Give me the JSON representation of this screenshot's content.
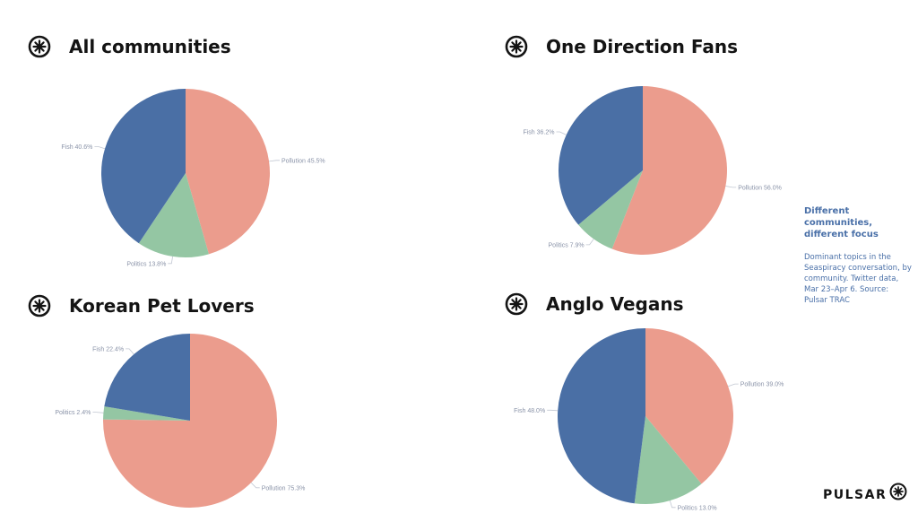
{
  "brand": {
    "name": "PULSAR",
    "logo_icon": "pulsar-star-icon"
  },
  "colors": {
    "pollution": "#eb9c8d",
    "fish": "#4a6fa5",
    "politics": "#94c6a3",
    "leader": "#c2c7d2",
    "text": "#8a93a8",
    "accent": "#4a70a8"
  },
  "side_note": {
    "title": "Different communities, different focus",
    "description": "Dominant topics in the Seaspiracy conversation, by community. Twitter data, Mar 23–Apr 6. Source: Pulsar TRAC"
  },
  "chart_data": [
    {
      "type": "pie",
      "title": "All communities",
      "slices": [
        {
          "label": "Pollution 45.5%",
          "name": "Pollution",
          "value": 45.5
        },
        {
          "label": "Politics 13.8%",
          "name": "Politics",
          "value": 13.8
        },
        {
          "label": "Fish 40.6%",
          "name": "Fish",
          "value": 40.6
        }
      ]
    },
    {
      "type": "pie",
      "title": "One Direction Fans",
      "slices": [
        {
          "label": "Pollution 56.0%",
          "name": "Pollution",
          "value": 56.0
        },
        {
          "label": "Politics 7.9%",
          "name": "Politics",
          "value": 7.9
        },
        {
          "label": "Fish 36.2%",
          "name": "Fish",
          "value": 36.2
        }
      ]
    },
    {
      "type": "pie",
      "title": "Korean Pet Lovers",
      "slices": [
        {
          "label": "Pollution 75.3%",
          "name": "Pollution",
          "value": 75.3
        },
        {
          "label": "Politics 2.4%",
          "name": "Politics",
          "value": 2.4
        },
        {
          "label": "Fish 22.4%",
          "name": "Fish",
          "value": 22.4
        }
      ]
    },
    {
      "type": "pie",
      "title": "Anglo Vegans",
      "slices": [
        {
          "label": "Pollution 39.0%",
          "name": "Pollution",
          "value": 39.0
        },
        {
          "label": "Politics 13.0%",
          "name": "Politics",
          "value": 13.0
        },
        {
          "label": "Fish 48.0%",
          "name": "Fish",
          "value": 48.0
        }
      ]
    }
  ]
}
